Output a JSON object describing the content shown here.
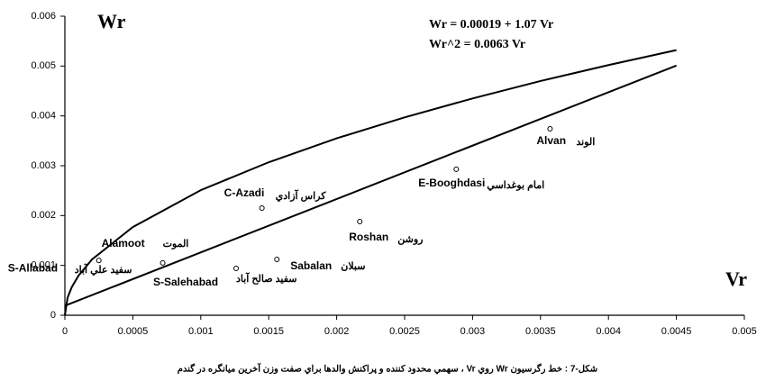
{
  "chart_data": {
    "type": "scatter",
    "x_title": "Vr",
    "y_title": "Wr",
    "annotations": [
      "Wr =  0.00019 +  1.07 Vr",
      "Wr^2 =  0.0063 Vr"
    ],
    "caption": "شكل-7 : خط رگرسيون  Wr  روي  Vr ، سهمي محدود كننده و پراكنش والدها براي صفت وزن آخرين ميانگره در گندم",
    "xlim": [
      0,
      0.005
    ],
    "xticks": [
      0,
      0.0005,
      0.001,
      0.0015,
      0.002,
      0.0025,
      0.003,
      0.0035,
      0.004,
      0.0045,
      0.005
    ],
    "ylim": [
      0,
      0.006
    ],
    "yticks": [
      0,
      0.001,
      0.002,
      0.003,
      0.004,
      0.005,
      0.006
    ],
    "color": "#000000",
    "points": {
      "x": [
        0.00025,
        0.00072,
        0.00126,
        0.00156,
        0.00145,
        0.00217,
        0.00288,
        0.00357
      ],
      "y": [
        0.0011,
        0.00105,
        0.00094,
        0.00112,
        0.00215,
        0.00188,
        0.00293,
        0.00374
      ],
      "labels_en": [
        "S-Allabad",
        "Alamoot",
        "S-Salehabad",
        "Sabalan",
        "C-Azadi",
        "Roshan",
        "E-Booghdasi",
        "Alvan"
      ],
      "labels_fa": [
        "سفيد علي آباد",
        "الموت",
        "سفيد صالح آباد",
        "سبلان",
        "كراس آزادي",
        "روشن",
        "امام بوغداسي",
        "الوند"
      ]
    },
    "lines": [
      {
        "x": [
          0,
          0.0045
        ],
        "y": [
          0.00019,
          0.00501
        ]
      },
      {
        "x": [
          0,
          2e-05,
          5e-05,
          0.0001,
          0.0002,
          0.0005,
          0.001,
          0.0015,
          0.002,
          0.0025,
          0.003,
          0.0035,
          0.004,
          0.0045
        ],
        "y": [
          0,
          0.000355,
          0.000561,
          0.000794,
          0.00112,
          0.00177,
          0.00251,
          0.00307,
          0.00355,
          0.00397,
          0.00435,
          0.0047,
          0.00502,
          0.00532
        ]
      }
    ]
  }
}
